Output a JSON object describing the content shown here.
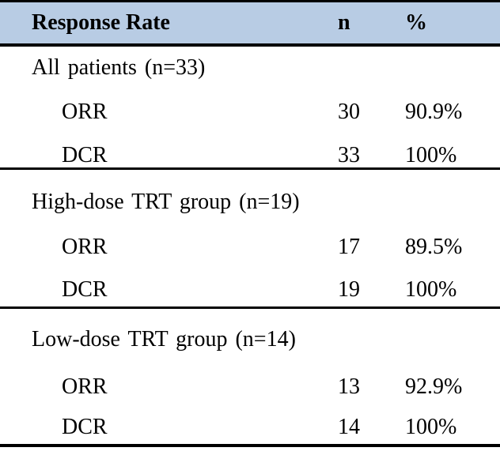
{
  "colors": {
    "header_bg": "#b8cce4",
    "border": "#000000",
    "text": "#000000"
  },
  "chart_data": {
    "type": "table",
    "title": "Response Rate",
    "columns": [
      "Response Rate",
      "n",
      "%"
    ],
    "sections": [
      {
        "title": "All patients (n=33)",
        "rows": [
          {
            "label": "ORR",
            "n": "30",
            "pct": "90.9%"
          },
          {
            "label": "DCR",
            "n": "33",
            "pct": "100%"
          }
        ]
      },
      {
        "title": "High-dose TRT group (n=19)",
        "rows": [
          {
            "label": "ORR",
            "n": "17",
            "pct": "89.5%"
          },
          {
            "label": "DCR",
            "n": "19",
            "pct": "100%"
          }
        ]
      },
      {
        "title": "Low-dose TRT group (n=14)",
        "rows": [
          {
            "label": "ORR",
            "n": "13",
            "pct": "92.9%"
          },
          {
            "label": "DCR",
            "n": "14",
            "pct": "100%"
          }
        ]
      }
    ]
  }
}
